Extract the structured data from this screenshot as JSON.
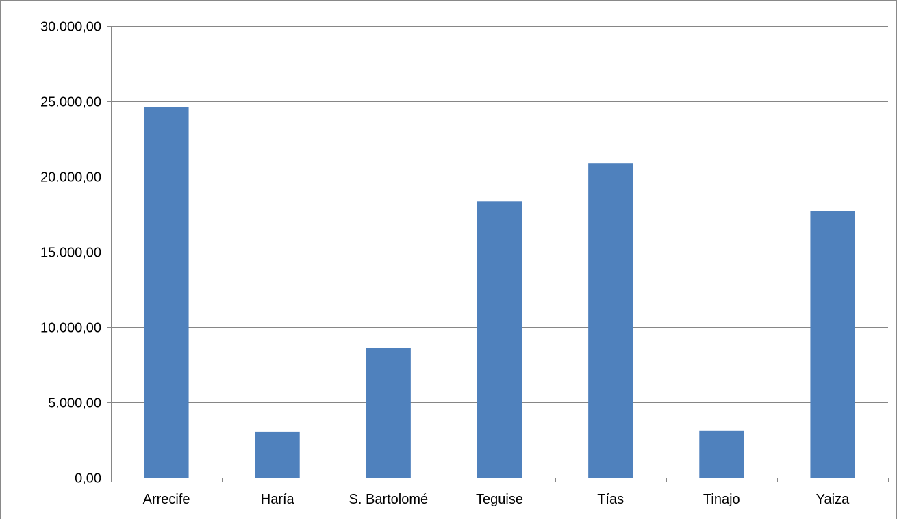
{
  "chart_data": {
    "type": "bar",
    "title": "",
    "xlabel": "",
    "ylabel": "",
    "categories": [
      "Arrecife",
      "Haría",
      "S. Bartolomé",
      "Teguise",
      "Tías",
      "Tinajo",
      "Yaiza"
    ],
    "values": [
      24600,
      3050,
      8600,
      18350,
      20900,
      3100,
      17700
    ],
    "ylim": [
      0,
      30000
    ],
    "yticks": [
      0,
      5000,
      10000,
      15000,
      20000,
      25000,
      30000
    ],
    "ytick_labels": [
      "0,00",
      "5.000,00",
      "10.000,00",
      "15.000,00",
      "20.000,00",
      "25.000,00",
      "30.000,00"
    ],
    "grid": true,
    "legend": "none",
    "colors": {
      "bar": "#4F81BD",
      "grid": "#868686",
      "axis": "#868686",
      "text": "#000000"
    }
  }
}
